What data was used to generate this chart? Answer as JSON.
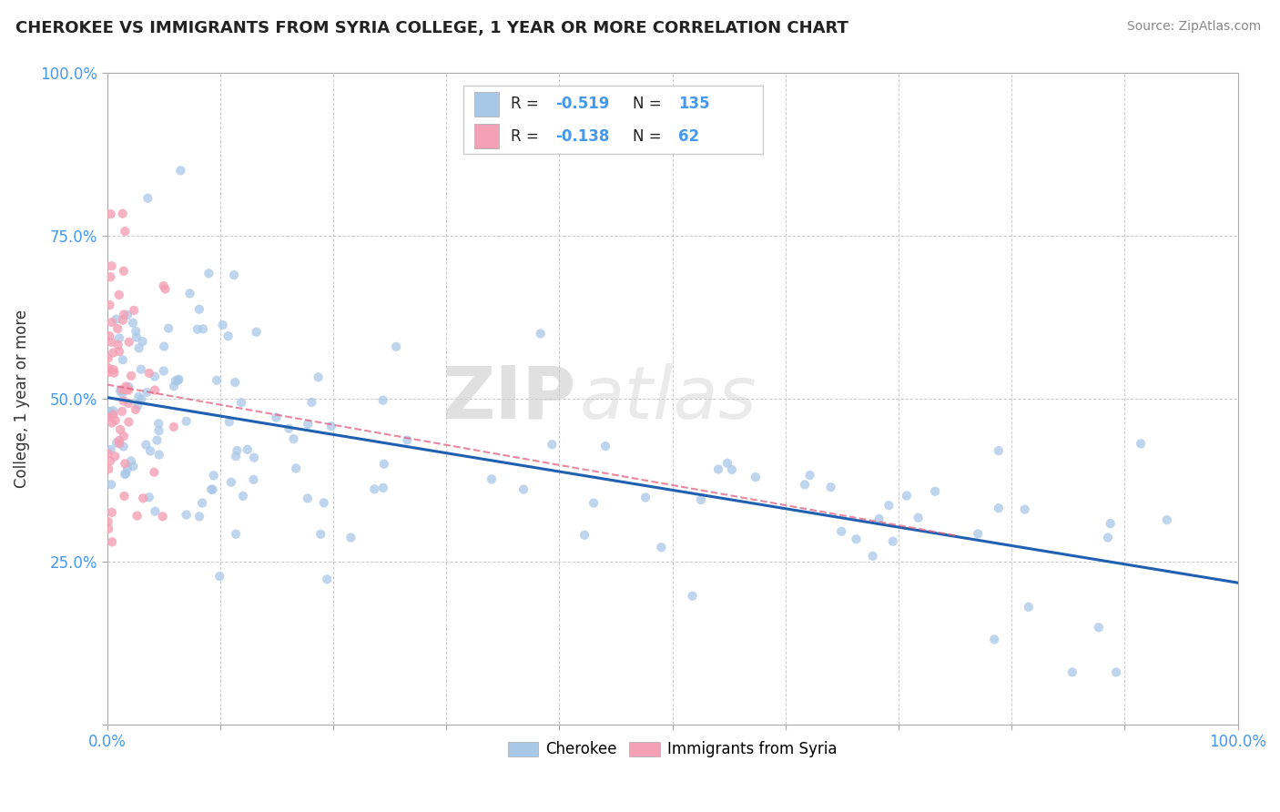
{
  "title": "CHEROKEE VS IMMIGRANTS FROM SYRIA COLLEGE, 1 YEAR OR MORE CORRELATION CHART",
  "source": "Source: ZipAtlas.com",
  "ylabel": "College, 1 year or more",
  "watermark_part1": "ZIP",
  "watermark_part2": "atlas",
  "legend": {
    "blue_R": "-0.519",
    "blue_N": "135",
    "pink_R": "-0.138",
    "pink_N": "62"
  },
  "blue_color": "#a8c8e8",
  "pink_color": "#f4a0b5",
  "blue_line_color": "#2060b0",
  "pink_line_color": "#e06080",
  "background_color": "#ffffff",
  "grid_color": "#cccccc",
  "xlim": [
    0.0,
    1.0
  ],
  "ylim": [
    0.0,
    1.0
  ],
  "x_ticks": [
    0.0,
    0.1,
    0.2,
    0.3,
    0.4,
    0.5,
    0.6,
    0.7,
    0.8,
    0.9,
    1.0
  ],
  "y_ticks": [
    0.0,
    0.25,
    0.5,
    0.75,
    1.0
  ]
}
